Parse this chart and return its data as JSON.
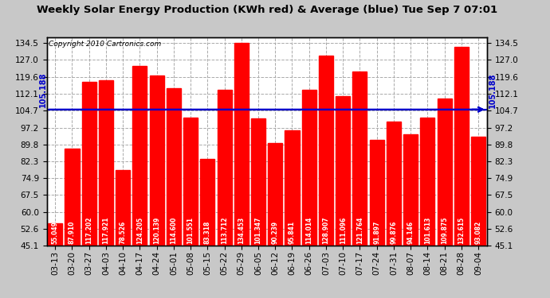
{
  "title": "Weekly Solar Energy Production (KWh red) & Average (blue) Tue Sep 7 07:01",
  "copyright": "Copyright 2010 Cartronics.com",
  "average": 105.188,
  "bar_color": "#ff0000",
  "avg_line_color": "#0000cc",
  "chart_bg_color": "#ffffff",
  "outer_bg_color": "#c8c8c8",
  "grid_color": "#aaaaaa",
  "categories": [
    "03-13",
    "03-20",
    "03-27",
    "04-03",
    "04-10",
    "04-17",
    "04-24",
    "05-01",
    "05-08",
    "05-15",
    "05-22",
    "05-29",
    "06-05",
    "06-12",
    "06-19",
    "06-26",
    "07-03",
    "07-10",
    "07-17",
    "07-24",
    "07-31",
    "08-07",
    "08-14",
    "08-21",
    "08-28",
    "09-04"
  ],
  "values": [
    55.049,
    87.91,
    117.202,
    117.921,
    78.526,
    124.205,
    120.139,
    114.6,
    101.551,
    83.318,
    113.712,
    134.453,
    101.347,
    90.239,
    95.841,
    114.014,
    128.907,
    111.096,
    121.764,
    91.897,
    99.876,
    94.146,
    101.613,
    109.875,
    132.615,
    93.082
  ],
  "ylim_min": 45.1,
  "ylim_max": 137.0,
  "yticks": [
    45.1,
    52.6,
    60.0,
    67.5,
    74.9,
    82.3,
    89.8,
    97.2,
    104.7,
    112.1,
    119.6,
    127.0,
    134.5
  ],
  "avg_label": "105.188",
  "title_fontsize": 9.5,
  "tick_fontsize": 7.5,
  "label_fontsize": 5.5,
  "copyright_fontsize": 6.5
}
